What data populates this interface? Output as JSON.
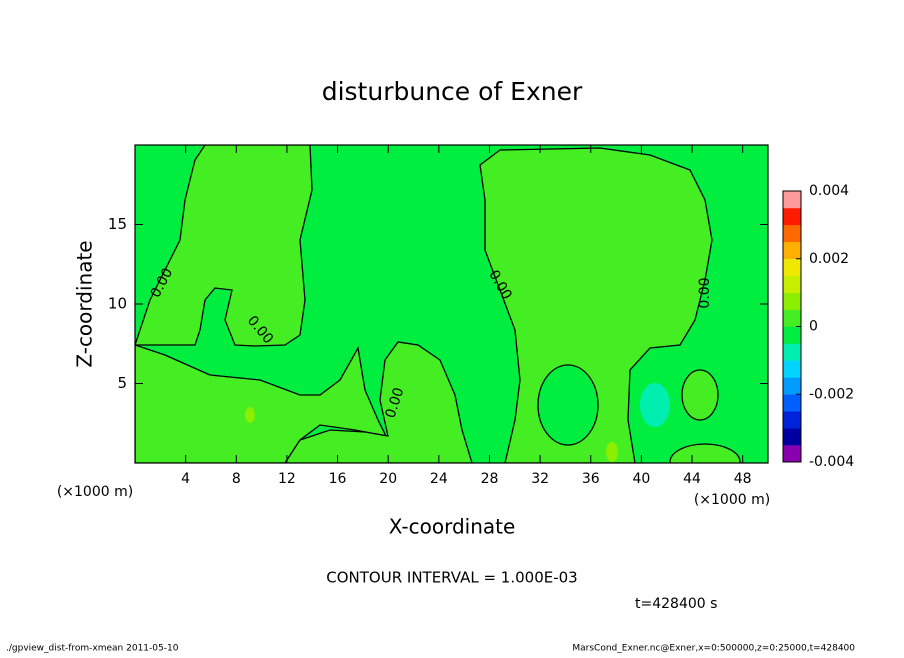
{
  "chart_data": {
    "type": "contour",
    "title": "disturbunce of Exner",
    "xlabel": "X-coordinate",
    "ylabel": "Z-coordinate",
    "x_unit": "(×1000 m)",
    "y_unit": "(×1000 m)",
    "xlim": [
      0,
      50
    ],
    "xticks": [
      4,
      8,
      12,
      16,
      20,
      24,
      28,
      32,
      36,
      40,
      44,
      48
    ],
    "ylim": [
      0,
      20
    ],
    "yticks": [
      5,
      10,
      15
    ],
    "contour_label": {
      "value": 0,
      "label": "0.00"
    },
    "contour_interval": "CONTOUR INTERVAL = 1.000E-03",
    "time": "t=428400 s",
    "colorbar": {
      "lim": [
        -0.004,
        0.004
      ],
      "ticks": [
        -0.004,
        -0.002,
        0,
        0.002,
        0.004
      ],
      "colors": [
        "#8a00b0",
        "#0000a0",
        "#0022d8",
        "#0060ff",
        "#009cff",
        "#00d4ff",
        "#00eeb0",
        "#00ee40",
        "#44ee22",
        "#8cee00",
        "#c8ee00",
        "#f0e800",
        "#ffb000",
        "#ff6a00",
        "#ff1a00",
        "#ff9a9a"
      ]
    },
    "footer_left": "./gpview_dist-from-xmean  2011-05-10",
    "footer_right": "MarsCond_Exner.nc@Exner,x=0:500000,z=0:25000,t=428400"
  }
}
